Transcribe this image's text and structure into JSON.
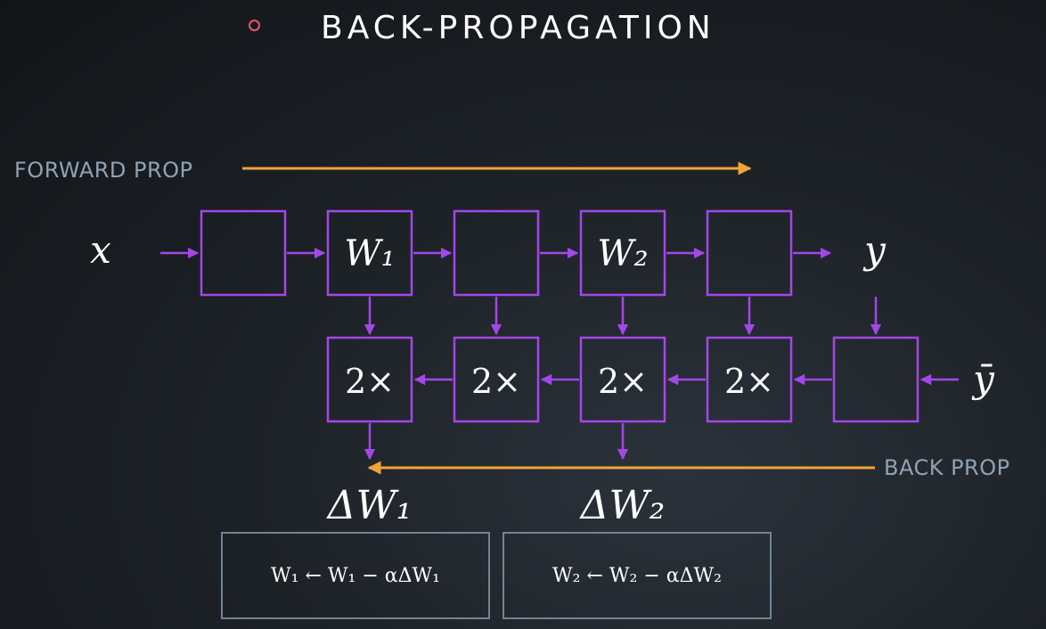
{
  "title": "BACK-PROPAGATION",
  "labels": {
    "forward_prop": "FORWARD PROP",
    "back_prop": "BACK PROP"
  },
  "nodes": {
    "input": "x",
    "output": "y",
    "target": "ȳ"
  },
  "forward_row": [
    "",
    "W₁",
    "",
    "W₂",
    ""
  ],
  "backward_row": [
    "2×",
    "2×",
    "2×",
    "2×",
    ""
  ],
  "gradients": [
    "ΔW₁",
    "ΔW₂"
  ],
  "updates": [
    "W₁ ← W₁ − αΔW₁",
    "W₂ ← W₂ − αΔW₂"
  ],
  "colors": {
    "background": "#1a1e22",
    "accent_bullet": "#e8536e",
    "box_stroke": "#a347e8",
    "prop_arrow": "#f2a33a",
    "label_text": "#8fa3b3",
    "update_box_stroke": "#6f8596"
  }
}
